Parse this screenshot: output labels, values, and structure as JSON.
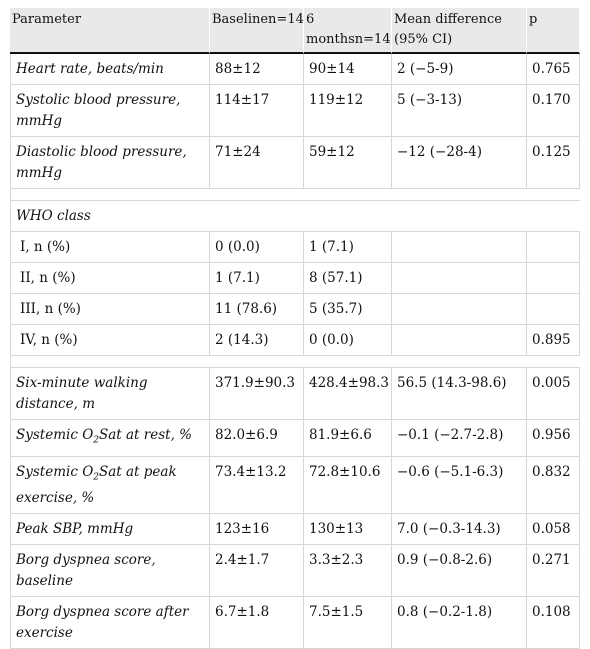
{
  "table": {
    "headers": [
      "Parameter",
      "Baselinen=14",
      "6 monthsn=14",
      "Mean difference (95% CI)",
      "p"
    ],
    "rows_hemodynamic": [
      {
        "param": "Heart rate, beats/min",
        "baseline": "88±12",
        "six_months": "90±14",
        "mean_diff": "2 (−5-9)",
        "p": "0.765"
      },
      {
        "param": "Systolic blood pressure, mmHg",
        "baseline": "114±17",
        "six_months": "119±12",
        "mean_diff": "5 (−3-13)",
        "p": "0.170"
      },
      {
        "param": "Diastolic blood pressure, mmHg",
        "baseline": "71±24",
        "six_months": "59±12",
        "mean_diff": "−12 (−28-4)",
        "p": "0.125"
      }
    ],
    "who_section_label": "WHO class",
    "rows_who": [
      {
        "param": "I, n (%)",
        "baseline": "0 (0.0)",
        "six_months": "1 (7.1)",
        "mean_diff": "",
        "p": ""
      },
      {
        "param": "II, n (%)",
        "baseline": "1 (7.1)",
        "six_months": "8 (57.1)",
        "mean_diff": "",
        "p": ""
      },
      {
        "param": "III, n (%)",
        "baseline": "11 (78.6)",
        "six_months": "5 (35.7)",
        "mean_diff": "",
        "p": ""
      },
      {
        "param": "IV, n (%)",
        "baseline": "2 (14.3)",
        "six_months": "0 (0.0)",
        "mean_diff": "",
        "p": "0.895"
      }
    ],
    "rows_exercise": [
      {
        "param": "Six-minute walking distance, m",
        "baseline": "371.9±90.3",
        "six_months": "428.4±98.3",
        "mean_diff": "56.5 (14.3-98.6)",
        "p": "0.005"
      },
      {
        "param_pre": "Systemic O",
        "param_sub": "2",
        "param_post": "Sat at rest, %",
        "baseline": "82.0±6.9",
        "six_months": "81.9±6.6",
        "mean_diff": "−0.1 (−2.7-2.8)",
        "p": "0.956"
      },
      {
        "param_pre": "Systemic O",
        "param_sub": "2",
        "param_post": "Sat at peak exercise, %",
        "baseline": "73.4±13.2",
        "six_months": "72.8±10.6",
        "mean_diff": "−0.6 (−5.1-6.3)",
        "p": "0.832"
      },
      {
        "param": "Peak SBP, mmHg",
        "baseline": "123±16",
        "six_months": "130±13",
        "mean_diff": "7.0 (−0.3-14.3)",
        "p": "0.058"
      },
      {
        "param": "Borg dyspnea score, baseline",
        "baseline": "2.4±1.7",
        "six_months": "3.3±2.3",
        "mean_diff": "0.9 (−0.8-2.6)",
        "p": "0.271"
      },
      {
        "param": "Borg dyspnea score after exercise",
        "baseline": "6.7±1.8",
        "six_months": "7.5±1.5",
        "mean_diff": "0.8 (−0.2-1.8)",
        "p": "0.108"
      }
    ]
  }
}
